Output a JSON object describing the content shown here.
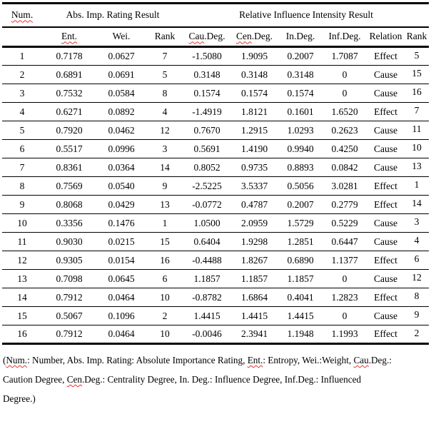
{
  "colors": {
    "text": "#000000",
    "background": "#ffffff",
    "squiggle": "#e0342f",
    "rule": "#000000"
  },
  "table": {
    "group_headers": {
      "num": "Num.",
      "abs": "Abs. Imp. Rating Result",
      "rel": "Relative Influence Intensity Result"
    },
    "columns": {
      "ent": "Ent.",
      "wei": "Wei.",
      "rank1": "Rank",
      "cau_wavy": "Cau",
      "cau_rest": ".Deg.",
      "cen_wavy": "Cen",
      "cen_rest": ".Deg.",
      "in_deg": "In.Deg.",
      "inf_deg": "Inf.Deg.",
      "relation": "Relation",
      "rank2": "Rank"
    },
    "rows": [
      [
        "1",
        "0.7178",
        "0.0627",
        "7",
        "-1.5080",
        "1.9095",
        "0.2007",
        "1.7087",
        "Effect",
        "5"
      ],
      [
        "2",
        "0.6891",
        "0.0691",
        "5",
        "0.3148",
        "0.3148",
        "0.3148",
        "0",
        "Cause",
        "15"
      ],
      [
        "3",
        "0.7532",
        "0.0584",
        "8",
        "0.1574",
        "0.1574",
        "0.1574",
        "0",
        "Cause",
        "16"
      ],
      [
        "4",
        "0.6271",
        "0.0892",
        "4",
        "-1.4919",
        "1.8121",
        "0.1601",
        "1.6520",
        "Effect",
        "7"
      ],
      [
        "5",
        "0.7920",
        "0.0462",
        "12",
        "0.7670",
        "1.2915",
        "1.0293",
        "0.2623",
        "Cause",
        "11"
      ],
      [
        "6",
        "0.5517",
        "0.0996",
        "3",
        "0.5691",
        "1.4190",
        "0.9940",
        "0.4250",
        "Cause",
        "10"
      ],
      [
        "7",
        "0.8361",
        "0.0364",
        "14",
        "0.8052",
        "0.9735",
        "0.8893",
        "0.0842",
        "Cause",
        "13"
      ],
      [
        "8",
        "0.7569",
        "0.0540",
        "9",
        "-2.5225",
        "3.5337",
        "0.5056",
        "3.0281",
        "Effect",
        "1"
      ],
      [
        "9",
        "0.8068",
        "0.0429",
        "13",
        "-0.0772",
        "0.4787",
        "0.2007",
        "0.2779",
        "Effect",
        "14"
      ],
      [
        "10",
        "0.3356",
        "0.1476",
        "1",
        "1.0500",
        "2.0959",
        "1.5729",
        "0.5229",
        "Cause",
        "3"
      ],
      [
        "11",
        "0.9030",
        "0.0215",
        "15",
        "0.6404",
        "1.9298",
        "1.2851",
        "0.6447",
        "Cause",
        "4"
      ],
      [
        "12",
        "0.9305",
        "0.0154",
        "16",
        "-0.4488",
        "1.8267",
        "0.6890",
        "1.1377",
        "Effect",
        "6"
      ],
      [
        "13",
        "0.7098",
        "0.0645",
        "6",
        "1.1857",
        "1.1857",
        "1.1857",
        "0",
        "Cause",
        "12"
      ],
      [
        "14",
        "0.7912",
        "0.0464",
        "10",
        "-0.8782",
        "1.6864",
        "0.4041",
        "1.2823",
        "Effect",
        "8"
      ],
      [
        "15",
        "0.5067",
        "0.1096",
        "2",
        "1.4415",
        "1.4415",
        "1.4415",
        "0",
        "Cause",
        "9"
      ],
      [
        "16",
        "0.7912",
        "0.0464",
        "10",
        "-0.0046",
        "2.3941",
        "1.1948",
        "1.1993",
        "Effect",
        "2"
      ]
    ]
  },
  "footnote": {
    "l1_open": "(",
    "l1_num": "Num.",
    "l1_a": ": Number, Abs. Imp. Rating: Absolute Importance Rating, ",
    "l1_ent": "Ent.",
    "l1_b": ": Entropy, Wei.:Weight, ",
    "l1_cau": "Cau",
    "l1_c": ".Deg.:",
    "l2_a": "Caution Degree, ",
    "l2_cen": "Cen",
    "l2_b": ".Deg.: Centrality Degree, In. Deg.: Influence Degree, Inf.Deg.: Influenced",
    "l3": "Degree.)"
  }
}
